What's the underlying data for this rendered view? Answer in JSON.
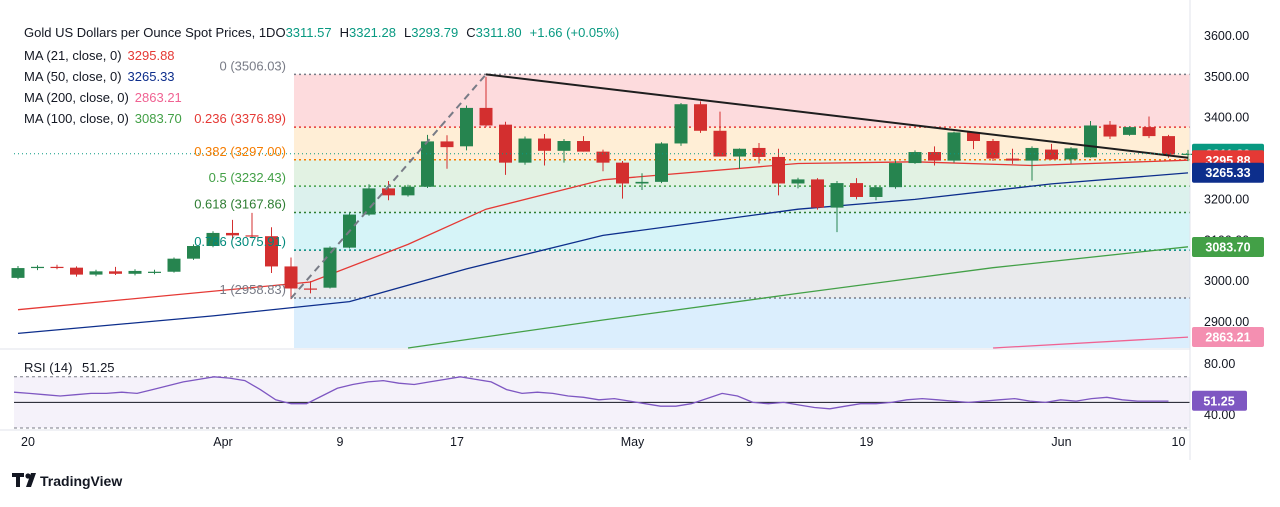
{
  "header": {
    "title": "Gold US Dollars per Ounce Spot Prices, 1D",
    "ohlc": [
      {
        "key": "O",
        "value": "3311.57"
      },
      {
        "key": "H",
        "value": "3321.28"
      },
      {
        "key": "L",
        "value": "3293.79"
      },
      {
        "key": "C",
        "value": "3311.80"
      }
    ],
    "change": "+1.66 (+0.05%)",
    "change_color": "#089981"
  },
  "moving_averages": [
    {
      "label": "MA (21, close, 0)",
      "value": "3295.88",
      "current": 3295.88,
      "color": "#e53935"
    },
    {
      "label": "MA (50, close, 0)",
      "value": "3265.33",
      "current": 3265.33,
      "color": "#0d2e8c"
    },
    {
      "label": "MA (200, close, 0)",
      "value": "2863.21",
      "current": 2863.21,
      "color": "#f06292"
    },
    {
      "label": "MA (100, close, 0)",
      "value": "3083.70",
      "current": 3083.7,
      "color": "#43a047"
    }
  ],
  "fibonacci": [
    {
      "label": "0 (3506.03)",
      "level": 0,
      "price": 3506.03,
      "color": "#787b86"
    },
    {
      "label": "0.236 (3376.89)",
      "level": 0.236,
      "price": 3376.89,
      "color": "#e53935"
    },
    {
      "label": "0.382 (3297.00)",
      "level": 0.382,
      "price": 3297.0,
      "color": "#f57c00"
    },
    {
      "label": "0.5 (3232.43)",
      "level": 0.5,
      "price": 3232.43,
      "color": "#43a047"
    },
    {
      "label": "0.618 (3167.86)",
      "level": 0.618,
      "price": 3167.86,
      "color": "#2e7d32"
    },
    {
      "label": "0.786 (3075.91)",
      "level": 0.786,
      "price": 3075.91,
      "color": "#00897b"
    },
    {
      "label": "1 (2958.83)",
      "level": 1,
      "price": 2958.83,
      "color": "#787b86"
    }
  ],
  "price_badges": [
    {
      "value": "3311.80",
      "price": 3311.8,
      "color": "#089981"
    },
    {
      "value": "3295.88",
      "price": 3295.88,
      "color": "#e53935"
    },
    {
      "value": "3265.33",
      "price": 3265.33,
      "color": "#0d2e8c"
    },
    {
      "value": "3083.70",
      "price": 3083.7,
      "color": "#43a047"
    },
    {
      "value": "2863.21",
      "price": 2863.21,
      "color": "#f48fb1"
    }
  ],
  "rsi": {
    "label": "RSI (14)",
    "value": "51.25",
    "current": 51.25,
    "color": "#7e57c2",
    "ticks": [
      "80.00",
      "40.00"
    ],
    "upper": 70,
    "lower": 30,
    "values": [
      58,
      57,
      56,
      55,
      56,
      57,
      57,
      58,
      57,
      60,
      63,
      66,
      68,
      70,
      69,
      67,
      60,
      52,
      49,
      49,
      55,
      61,
      64,
      66,
      67,
      65,
      64,
      66,
      68,
      70,
      68,
      66,
      60,
      57,
      58,
      57,
      55,
      54,
      52,
      53,
      51,
      49,
      47,
      47,
      49,
      53,
      57,
      55,
      50,
      49,
      50,
      48,
      46,
      45,
      47,
      49,
      49,
      50,
      52,
      53,
      52,
      51,
      50,
      51,
      52,
      53,
      51,
      50,
      52,
      51,
      53,
      54,
      52,
      51,
      51,
      51
    ]
  },
  "chart_data": {
    "type": "candlestick",
    "title": "Gold US Dollars per Ounce Spot Prices, 1D",
    "y_axis_ticks": [
      "3600.00",
      "3500.00",
      "3400.00",
      "3300.00",
      "3200.00",
      "3100.00",
      "3000.00",
      "2900.00"
    ],
    "y_range": [
      2840,
      3640
    ],
    "x_ticks": [
      {
        "label": "20",
        "index": 0
      },
      {
        "label": "Apr",
        "index": 10
      },
      {
        "label": "9",
        "index": 16
      },
      {
        "label": "17",
        "index": 22
      },
      {
        "label": "May",
        "index": 31
      },
      {
        "label": "9",
        "index": 37
      },
      {
        "label": "19",
        "index": 43
      },
      {
        "label": "Jun",
        "index": 53
      },
      {
        "label": "10",
        "index": 59
      }
    ],
    "candles": [
      {
        "o": 3008,
        "h": 3037,
        "l": 3005,
        "c": 3032
      },
      {
        "o": 3032,
        "h": 3039,
        "l": 3027,
        "c": 3035
      },
      {
        "o": 3035,
        "h": 3040,
        "l": 3029,
        "c": 3033
      },
      {
        "o": 3033,
        "h": 3036,
        "l": 3011,
        "c": 3016
      },
      {
        "o": 3016,
        "h": 3028,
        "l": 3012,
        "c": 3024
      },
      {
        "o": 3024,
        "h": 3035,
        "l": 3015,
        "c": 3018
      },
      {
        "o": 3018,
        "h": 3029,
        "l": 3014,
        "c": 3025
      },
      {
        "o": 3021,
        "h": 3028,
        "l": 3017,
        "c": 3023
      },
      {
        "o": 3023,
        "h": 3058,
        "l": 3021,
        "c": 3055
      },
      {
        "o": 3055,
        "h": 3090,
        "l": 3052,
        "c": 3086
      },
      {
        "o": 3086,
        "h": 3122,
        "l": 3083,
        "c": 3118
      },
      {
        "o": 3118,
        "h": 3150,
        "l": 3103,
        "c": 3112
      },
      {
        "o": 3112,
        "h": 3167,
        "l": 3105,
        "c": 3110
      },
      {
        "o": 3110,
        "h": 3132,
        "l": 3020,
        "c": 3036
      },
      {
        "o": 3036,
        "h": 3058,
        "l": 2956,
        "c": 2982
      },
      {
        "o": 2982,
        "h": 3000,
        "l": 2970,
        "c": 2980
      },
      {
        "o": 2984,
        "h": 3085,
        "l": 2982,
        "c": 3082
      },
      {
        "o": 3082,
        "h": 3168,
        "l": 3080,
        "c": 3163
      },
      {
        "o": 3163,
        "h": 3237,
        "l": 3160,
        "c": 3227
      },
      {
        "o": 3227,
        "h": 3245,
        "l": 3198,
        "c": 3210
      },
      {
        "o": 3210,
        "h": 3236,
        "l": 3207,
        "c": 3231
      },
      {
        "o": 3231,
        "h": 3358,
        "l": 3228,
        "c": 3342
      },
      {
        "o": 3342,
        "h": 3357,
        "l": 3275,
        "c": 3328
      },
      {
        "o": 3330,
        "h": 3430,
        "l": 3320,
        "c": 3424
      },
      {
        "o": 3424,
        "h": 3500,
        "l": 3378,
        "c": 3381
      },
      {
        "o": 3383,
        "h": 3390,
        "l": 3260,
        "c": 3290
      },
      {
        "o": 3290,
        "h": 3354,
        "l": 3285,
        "c": 3349
      },
      {
        "o": 3349,
        "h": 3360,
        "l": 3283,
        "c": 3319
      },
      {
        "o": 3319,
        "h": 3348,
        "l": 3290,
        "c": 3343
      },
      {
        "o": 3343,
        "h": 3355,
        "l": 3317,
        "c": 3317
      },
      {
        "o": 3317,
        "h": 3322,
        "l": 3269,
        "c": 3290
      },
      {
        "o": 3290,
        "h": 3294,
        "l": 3202,
        "c": 3239
      },
      {
        "o": 3239,
        "h": 3264,
        "l": 3223,
        "c": 3243
      },
      {
        "o": 3243,
        "h": 3340,
        "l": 3240,
        "c": 3337
      },
      {
        "o": 3337,
        "h": 3436,
        "l": 3331,
        "c": 3433
      },
      {
        "o": 3433,
        "h": 3440,
        "l": 3363,
        "c": 3368
      },
      {
        "o": 3368,
        "h": 3415,
        "l": 3307,
        "c": 3305
      },
      {
        "o": 3305,
        "h": 3325,
        "l": 3275,
        "c": 3324
      },
      {
        "o": 3326,
        "h": 3338,
        "l": 3288,
        "c": 3304
      },
      {
        "o": 3304,
        "h": 3324,
        "l": 3210,
        "c": 3239
      },
      {
        "o": 3239,
        "h": 3253,
        "l": 3227,
        "c": 3249
      },
      {
        "o": 3249,
        "h": 3252,
        "l": 3175,
        "c": 3180
      },
      {
        "o": 3180,
        "h": 3245,
        "l": 3120,
        "c": 3240
      },
      {
        "o": 3240,
        "h": 3252,
        "l": 3200,
        "c": 3206
      },
      {
        "o": 3206,
        "h": 3235,
        "l": 3198,
        "c": 3230
      },
      {
        "o": 3230,
        "h": 3295,
        "l": 3226,
        "c": 3289
      },
      {
        "o": 3289,
        "h": 3320,
        "l": 3287,
        "c": 3316
      },
      {
        "o": 3316,
        "h": 3330,
        "l": 3283,
        "c": 3295
      },
      {
        "o": 3295,
        "h": 3366,
        "l": 3290,
        "c": 3364
      },
      {
        "o": 3364,
        "h": 3362,
        "l": 3323,
        "c": 3343
      },
      {
        "o": 3343,
        "h": 3348,
        "l": 3294,
        "c": 3300
      },
      {
        "o": 3300,
        "h": 3324,
        "l": 3287,
        "c": 3295
      },
      {
        "o": 3295,
        "h": 3330,
        "l": 3246,
        "c": 3326
      },
      {
        "o": 3322,
        "h": 3336,
        "l": 3297,
        "c": 3298
      },
      {
        "o": 3298,
        "h": 3328,
        "l": 3288,
        "c": 3325
      },
      {
        "o": 3303,
        "h": 3392,
        "l": 3302,
        "c": 3381
      },
      {
        "o": 3383,
        "h": 3392,
        "l": 3348,
        "c": 3354
      },
      {
        "o": 3358,
        "h": 3379,
        "l": 3356,
        "c": 3377
      },
      {
        "o": 3377,
        "h": 3403,
        "l": 3350,
        "c": 3355
      },
      {
        "o": 3355,
        "h": 3358,
        "l": 3302,
        "c": 3310
      },
      {
        "o": 3311.57,
        "h": 3321.28,
        "l": 3293.79,
        "c": 3311.8
      }
    ],
    "ma_series": {
      "ma21": [
        [
          0,
          2930
        ],
        [
          15,
          2998
        ],
        [
          20,
          3090
        ],
        [
          24,
          3176
        ],
        [
          30,
          3248
        ],
        [
          40,
          3288
        ],
        [
          46,
          3292
        ],
        [
          52,
          3283
        ],
        [
          60,
          3296
        ]
      ],
      "ma50": [
        [
          0,
          2872
        ],
        [
          10,
          2915
        ],
        [
          17,
          2950
        ],
        [
          23,
          3030
        ],
        [
          30,
          3112
        ],
        [
          40,
          3176
        ],
        [
          46,
          3200
        ],
        [
          53,
          3238
        ],
        [
          60,
          3265
        ]
      ],
      "ma100": [
        [
          20,
          2827
        ],
        [
          30,
          2905
        ],
        [
          40,
          2970
        ],
        [
          50,
          3033
        ],
        [
          60,
          3084
        ]
      ],
      "ma200": [
        [
          50,
          2830
        ],
        [
          60,
          2863
        ]
      ]
    },
    "trendline": [
      [
        24,
        3506
      ],
      [
        60,
        3302
      ]
    ],
    "swing_line": [
      [
        14,
        2958
      ],
      [
        24,
        3506
      ]
    ]
  },
  "branding": {
    "logo_text": "TradingView",
    "logo_mark": "tradingview-logo-icon"
  }
}
